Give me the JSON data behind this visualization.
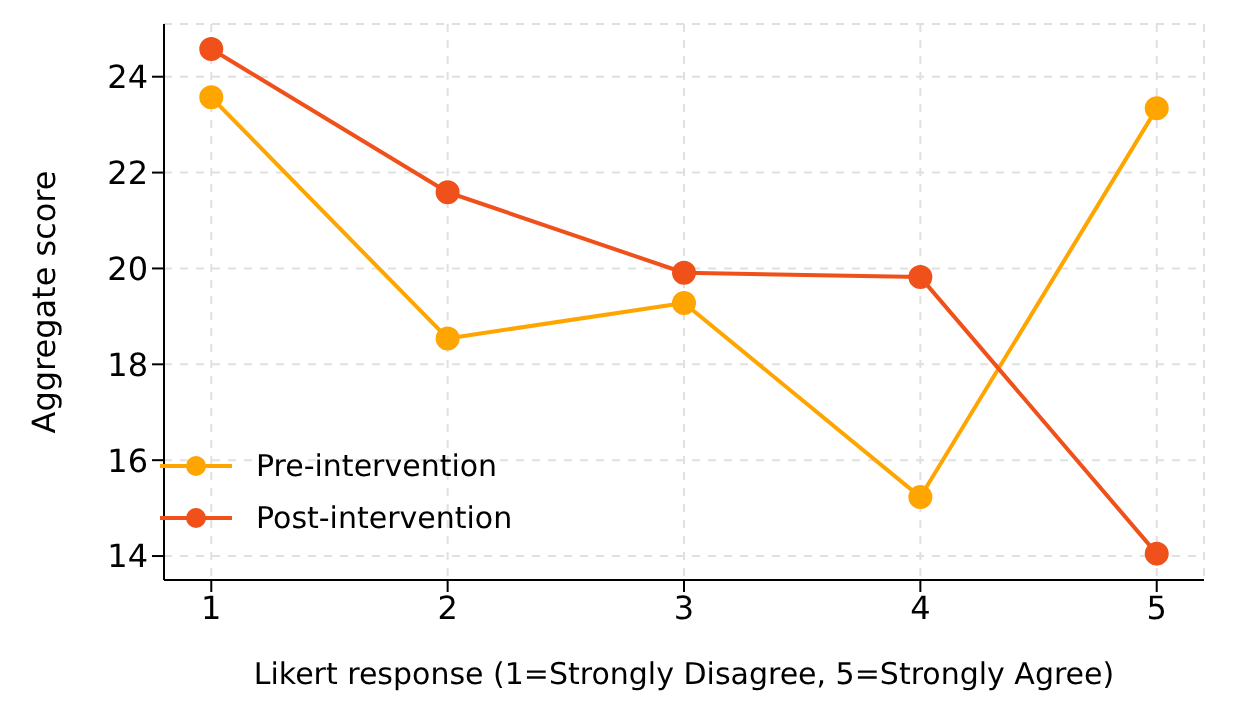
{
  "chart_data": {
    "type": "line",
    "xlabel": "Likert response (1=Strongly Disagree, 5=Strongly Agree)",
    "ylabel": "Aggregate score",
    "x": [
      1,
      2,
      3,
      4,
      5
    ],
    "series": [
      {
        "name": "Pre-intervention",
        "color": "#ffa500",
        "values": [
          23.57,
          18.54,
          19.28,
          15.23,
          23.34
        ]
      },
      {
        "name": "Post-intervention",
        "color": "#f0501a",
        "values": [
          24.58,
          21.59,
          19.91,
          19.82,
          14.05
        ]
      }
    ],
    "xlim": [
      0.8,
      5.2
    ],
    "xticks": [
      1,
      2,
      3,
      4,
      5
    ],
    "ylim": [
      13.5,
      25.1
    ],
    "yticks": [
      14,
      16,
      18,
      20,
      22,
      24
    ],
    "grid": true,
    "legend": "bottom left",
    "marker": "circle",
    "line_style": "solid"
  }
}
